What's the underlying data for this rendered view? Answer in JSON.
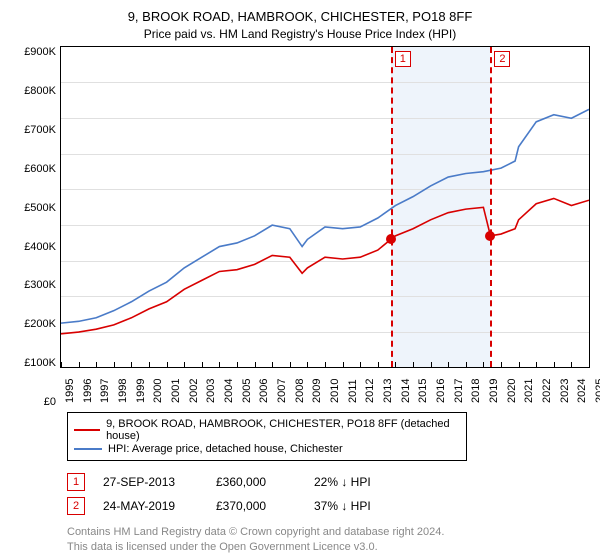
{
  "title": "9, BROOK ROAD, HAMBROOK, CHICHESTER, PO18 8FF",
  "subtitle": "Price paid vs. HM Land Registry's House Price Index (HPI)",
  "chart": {
    "type": "line",
    "background_color": "#ffffff",
    "grid_color": "#e0e0e0",
    "axis_color": "#000000",
    "shade_color": "#eef4fb",
    "y": {
      "min": 0,
      "max": 900000,
      "step": 100000,
      "labels": [
        "£900K",
        "£800K",
        "£700K",
        "£600K",
        "£500K",
        "£400K",
        "£300K",
        "£200K",
        "£100K",
        "£0"
      ]
    },
    "x": {
      "min": 1995,
      "max": 2025,
      "labels": [
        "1995",
        "1996",
        "1997",
        "1998",
        "1999",
        "2000",
        "2001",
        "2002",
        "2003",
        "2004",
        "2005",
        "2006",
        "2007",
        "2008",
        "2009",
        "2010",
        "2011",
        "2012",
        "2013",
        "2014",
        "2015",
        "2016",
        "2017",
        "2018",
        "2019",
        "2020",
        "2021",
        "2022",
        "2023",
        "2024",
        "2025"
      ]
    },
    "shaded_ranges": [
      {
        "from": 2013.74,
        "to": 2019.4
      }
    ],
    "series": [
      {
        "name": "HPI: Average price, detached house, Chichester",
        "color": "#4a7bc8",
        "width": 1.6,
        "points": [
          [
            1995,
            125000
          ],
          [
            1996,
            130000
          ],
          [
            1997,
            140000
          ],
          [
            1998,
            160000
          ],
          [
            1999,
            185000
          ],
          [
            2000,
            215000
          ],
          [
            2001,
            240000
          ],
          [
            2002,
            280000
          ],
          [
            2003,
            310000
          ],
          [
            2004,
            340000
          ],
          [
            2005,
            350000
          ],
          [
            2006,
            370000
          ],
          [
            2007,
            400000
          ],
          [
            2008,
            390000
          ],
          [
            2008.7,
            340000
          ],
          [
            2009,
            360000
          ],
          [
            2010,
            395000
          ],
          [
            2011,
            390000
          ],
          [
            2012,
            395000
          ],
          [
            2013,
            420000
          ],
          [
            2014,
            455000
          ],
          [
            2015,
            480000
          ],
          [
            2016,
            510000
          ],
          [
            2017,
            535000
          ],
          [
            2018,
            545000
          ],
          [
            2019,
            550000
          ],
          [
            2020,
            560000
          ],
          [
            2020.8,
            580000
          ],
          [
            2021,
            620000
          ],
          [
            2022,
            690000
          ],
          [
            2023,
            710000
          ],
          [
            2024,
            700000
          ],
          [
            2025,
            725000
          ]
        ]
      },
      {
        "name": "9, BROOK ROAD, HAMBROOK, CHICHESTER, PO18 8FF (detached house)",
        "color": "#d80000",
        "width": 1.6,
        "points": [
          [
            1995,
            95000
          ],
          [
            1996,
            100000
          ],
          [
            1997,
            108000
          ],
          [
            1998,
            120000
          ],
          [
            1999,
            140000
          ],
          [
            2000,
            165000
          ],
          [
            2001,
            185000
          ],
          [
            2002,
            220000
          ],
          [
            2003,
            245000
          ],
          [
            2004,
            270000
          ],
          [
            2005,
            275000
          ],
          [
            2006,
            290000
          ],
          [
            2007,
            315000
          ],
          [
            2008,
            310000
          ],
          [
            2008.7,
            265000
          ],
          [
            2009,
            280000
          ],
          [
            2010,
            310000
          ],
          [
            2011,
            305000
          ],
          [
            2012,
            310000
          ],
          [
            2013,
            330000
          ],
          [
            2013.74,
            360000
          ],
          [
            2014,
            370000
          ],
          [
            2015,
            390000
          ],
          [
            2016,
            415000
          ],
          [
            2017,
            435000
          ],
          [
            2018,
            445000
          ],
          [
            2019,
            450000
          ],
          [
            2019.4,
            370000
          ],
          [
            2020,
            375000
          ],
          [
            2020.8,
            390000
          ],
          [
            2021,
            415000
          ],
          [
            2022,
            460000
          ],
          [
            2023,
            475000
          ],
          [
            2024,
            455000
          ],
          [
            2025,
            470000
          ]
        ]
      }
    ],
    "markers": [
      {
        "year": 2013.74,
        "value": 360000,
        "color": "#d80000"
      },
      {
        "year": 2019.4,
        "value": 370000,
        "color": "#d80000"
      }
    ],
    "reflines": [
      {
        "year": 2013.74,
        "label": "1",
        "color": "#d80000"
      },
      {
        "year": 2019.4,
        "label": "2",
        "color": "#d80000"
      }
    ]
  },
  "legend": [
    {
      "color": "#d80000",
      "label": "9, BROOK ROAD, HAMBROOK, CHICHESTER, PO18 8FF (detached house)"
    },
    {
      "color": "#4a7bc8",
      "label": "HPI: Average price, detached house, Chichester"
    }
  ],
  "sales": [
    {
      "n": "1",
      "date": "27-SEP-2013",
      "price": "£360,000",
      "diff": "22% ↓ HPI",
      "badge_color": "#d80000"
    },
    {
      "n": "2",
      "date": "24-MAY-2019",
      "price": "£370,000",
      "diff": "37% ↓ HPI",
      "badge_color": "#d80000"
    }
  ],
  "footnotes": [
    "Contains HM Land Registry data © Crown copyright and database right 2024.",
    "This data is licensed under the Open Government Licence v3.0."
  ]
}
